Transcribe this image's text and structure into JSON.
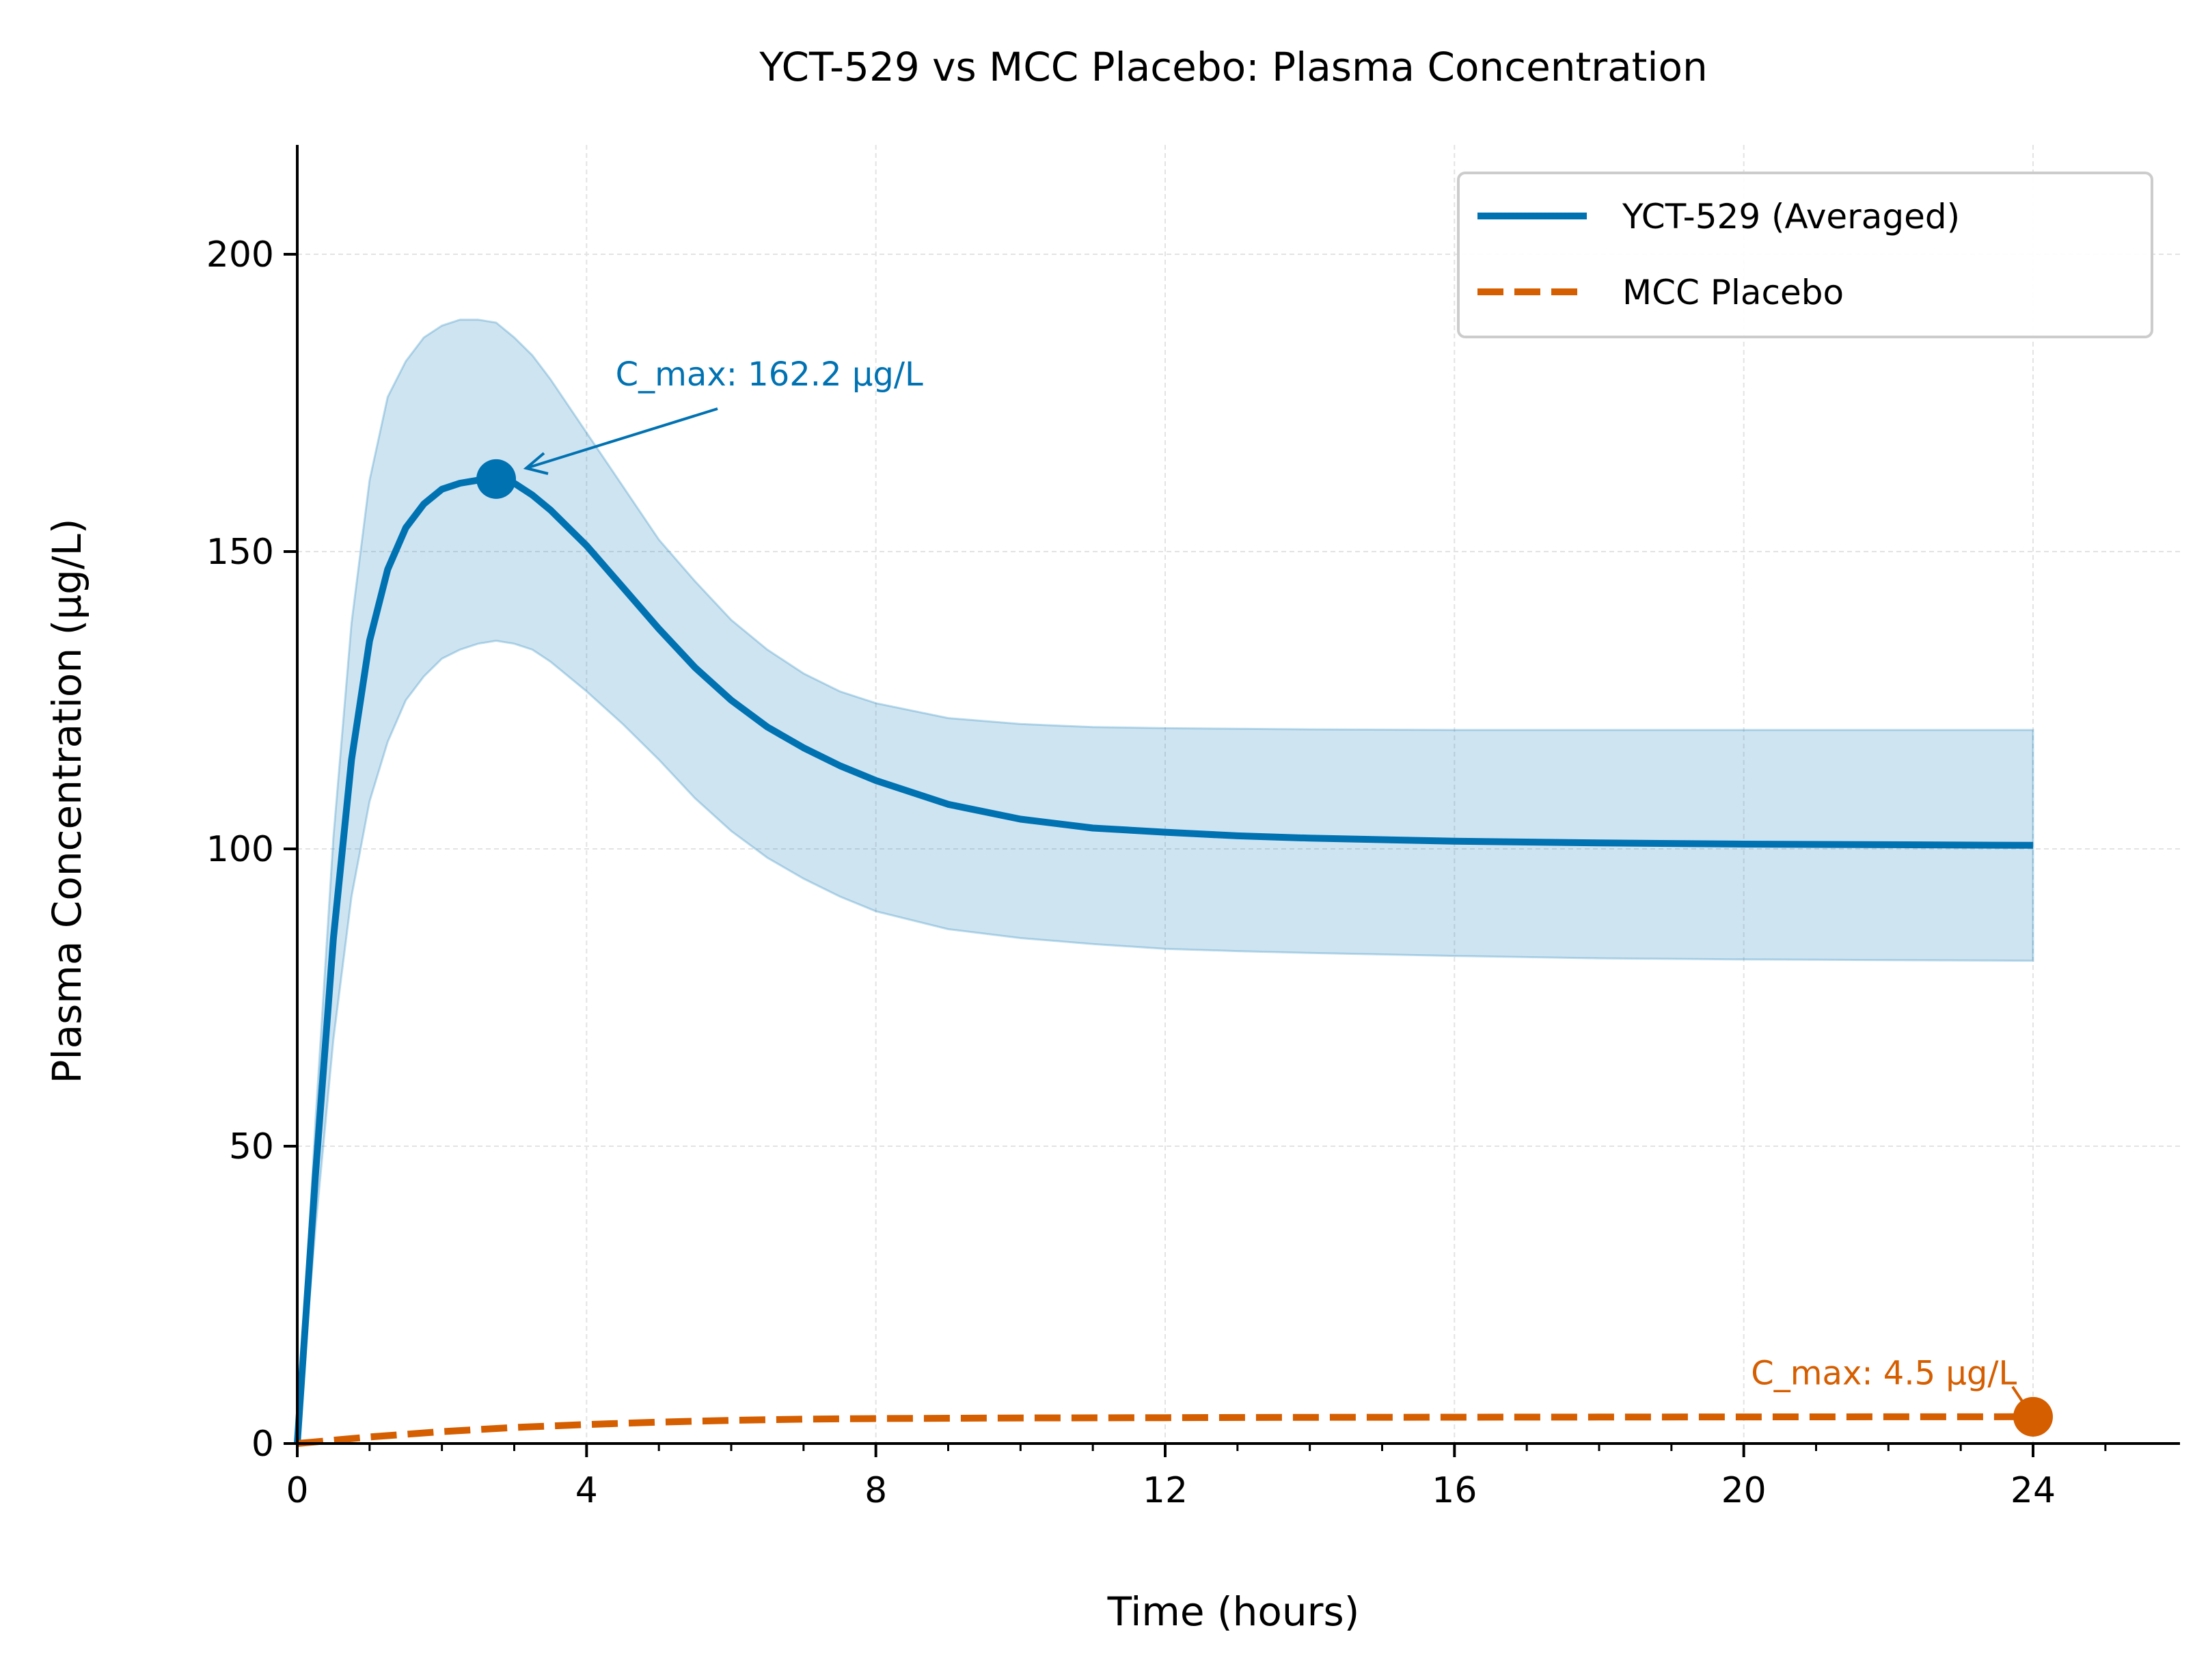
{
  "chart_data": {
    "type": "line",
    "title": "YCT-529 vs MCC Placebo: Plasma Concentration",
    "xlabel": "Time (hours)",
    "ylabel": "Plasma Concentration (µg/L)",
    "xlim": [
      0,
      26
    ],
    "ylim": [
      0,
      218
    ],
    "x_ticks": [
      0,
      4,
      8,
      12,
      16,
      20,
      24
    ],
    "y_ticks": [
      0,
      50,
      100,
      150,
      200
    ],
    "grid": true,
    "legend_position": "top-right",
    "series": [
      {
        "name": "YCT-529 (Averaged)",
        "style": "solid",
        "color": "#0072b2",
        "x": [
          0,
          0.25,
          0.5,
          0.75,
          1,
          1.25,
          1.5,
          1.75,
          2,
          2.25,
          2.5,
          2.75,
          3,
          3.25,
          3.5,
          4,
          4.5,
          5,
          5.5,
          6,
          6.5,
          7,
          7.5,
          8,
          9,
          10,
          11,
          12,
          13,
          14,
          16,
          18,
          20,
          22,
          24
        ],
        "y": [
          0,
          45,
          85,
          115,
          135,
          147,
          154,
          158,
          160.5,
          161.5,
          162,
          162.2,
          161.5,
          159.5,
          157,
          151,
          144,
          137,
          130.5,
          125,
          120.5,
          117,
          114,
          111.5,
          107.5,
          105,
          103.5,
          102.8,
          102.2,
          101.8,
          101.3,
          101,
          100.8,
          100.7,
          100.6
        ],
        "upper": [
          0,
          54,
          102,
          138,
          162,
          176,
          182,
          186,
          188,
          189,
          189,
          188.5,
          186,
          183,
          179,
          170,
          161,
          152,
          145,
          138.5,
          133.5,
          129.5,
          126.5,
          124.5,
          122,
          121,
          120.5,
          120.3,
          120.2,
          120.1,
          120,
          120,
          120,
          120,
          120
        ],
        "lower": [
          0,
          36,
          68,
          92,
          108,
          118,
          125,
          129,
          132,
          133.5,
          134.5,
          135,
          134.5,
          133.5,
          131.5,
          126.5,
          121,
          115,
          108.5,
          103,
          98.5,
          95,
          92,
          89.5,
          86.5,
          85,
          84,
          83.2,
          82.8,
          82.5,
          82,
          81.6,
          81.4,
          81.3,
          81.2
        ]
      },
      {
        "name": "MCC Placebo",
        "style": "dashed",
        "color": "#d55e00",
        "x": [
          0,
          1,
          2,
          3,
          4,
          5,
          6,
          7,
          8,
          10,
          12,
          14,
          16,
          18,
          20,
          22,
          24
        ],
        "y": [
          0,
          1.1,
          2.0,
          2.7,
          3.2,
          3.6,
          3.9,
          4.1,
          4.2,
          4.3,
          4.35,
          4.4,
          4.42,
          4.45,
          4.47,
          4.49,
          4.5
        ]
      }
    ],
    "annotations": [
      {
        "text": "C_max: 162.2 µg/L",
        "x": 2.75,
        "y": 162.2,
        "text_x": 4.4,
        "text_y": 180,
        "color": "#0072b2"
      },
      {
        "text": "C_max: 4.5 µg/L",
        "x": 24,
        "y": 4.5,
        "text_x": 20.1,
        "text_y": 12,
        "color": "#d55e00"
      }
    ]
  }
}
